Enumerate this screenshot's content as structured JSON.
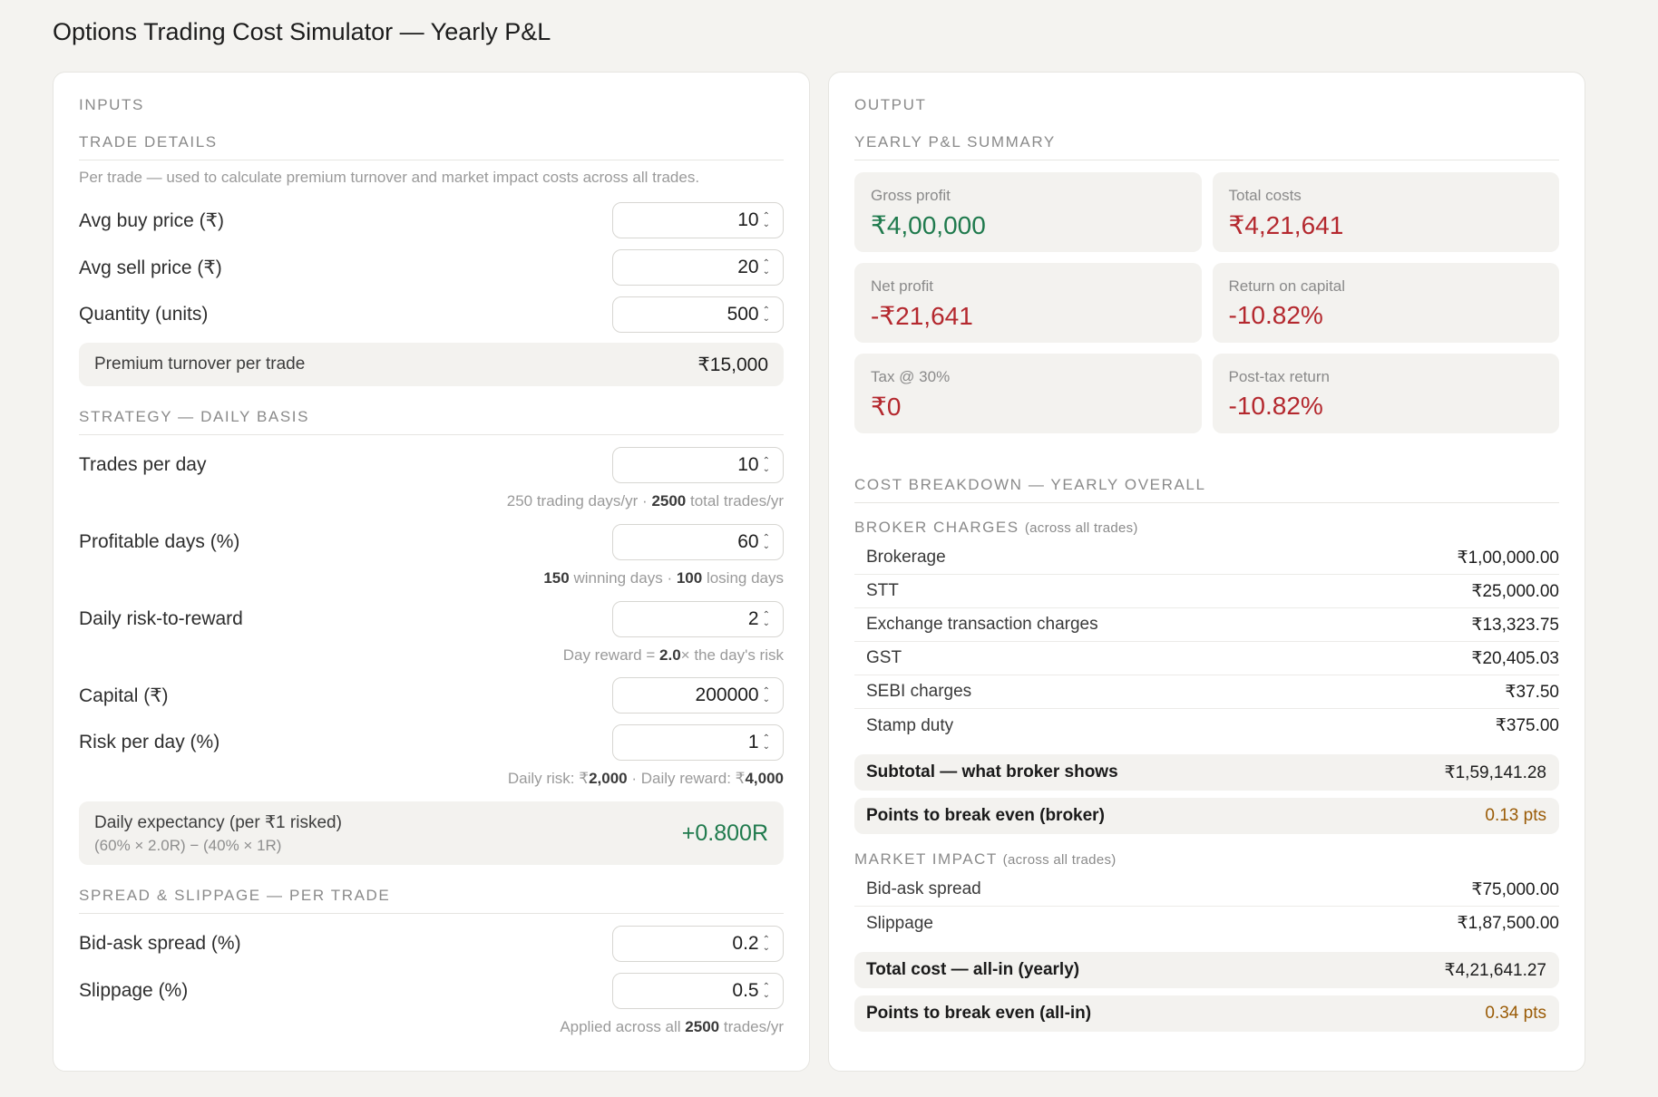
{
  "title": "Options Trading Cost Simulator — Yearly P&L",
  "inputs": {
    "heading": "INPUTS",
    "trade_details": {
      "heading": "TRADE DETAILS",
      "description": "Per trade — used to calculate premium turnover and market impact costs across all trades.",
      "avg_buy_label": "Avg buy price (₹)",
      "avg_buy_value": "10",
      "avg_sell_label": "Avg sell price (₹)",
      "avg_sell_value": "20",
      "quantity_label": "Quantity (units)",
      "quantity_value": "500",
      "turnover_label": "Premium turnover per trade",
      "turnover_value": "₹15,000"
    },
    "strategy": {
      "heading": "STRATEGY — DAILY BASIS",
      "trades_per_day_label": "Trades per day",
      "trades_per_day_value": "10",
      "trading_days_text": "250 trading days/yr",
      "total_trades": "2500",
      "total_trades_suffix": "total trades/yr",
      "profitable_days_label": "Profitable days (%)",
      "profitable_days_value": "60",
      "winning_days": "150",
      "winning_days_suffix": "winning days",
      "losing_days": "100",
      "losing_days_suffix": "losing days",
      "rr_label": "Daily risk-to-reward",
      "rr_value": "2",
      "rr_hint_prefix": "Day reward =",
      "rr_hint_value": "2.0",
      "rr_hint_suffix": "× the day's risk",
      "capital_label": "Capital (₹)",
      "capital_value": "200000",
      "risk_label": "Risk per day (%)",
      "risk_value": "1",
      "daily_risk_prefix": "Daily risk: ₹",
      "daily_risk": "2,000",
      "daily_reward_prefix": "Daily reward: ₹",
      "daily_reward": "4,000",
      "expectancy_label": "Daily expectancy (per ₹1 risked)",
      "expectancy_formula": "(60% × 2.0R) − (40% × 1R)",
      "expectancy_value": "+0.800R"
    },
    "spread": {
      "heading": "SPREAD & SLIPPAGE — PER TRADE",
      "bid_ask_label": "Bid-ask spread (%)",
      "bid_ask_value": "0.2",
      "slippage_label": "Slippage (%)",
      "slippage_value": "0.5",
      "applied_prefix": "Applied across all",
      "applied_value": "2500",
      "applied_suffix": "trades/yr"
    }
  },
  "output": {
    "heading": "OUTPUT",
    "summary_heading": "YEARLY P&L SUMMARY",
    "cards": [
      {
        "label": "Gross profit",
        "value": "₹4,00,000"
      },
      {
        "label": "Total costs",
        "value": "₹4,21,641"
      },
      {
        "label": "Net profit",
        "value": "-₹21,641"
      },
      {
        "label": "Return on capital",
        "value": "-10.82%"
      },
      {
        "label": "Tax @ 30%",
        "value": "₹0"
      },
      {
        "label": "Post-tax return",
        "value": "-10.82%"
      }
    ],
    "breakdown_heading": "COST BREAKDOWN — YEARLY OVERALL",
    "broker_heading": "BROKER CHARGES",
    "broker_note": "(across all trades)",
    "broker_rows": [
      {
        "label": "Brokerage",
        "value": "₹1,00,000.00"
      },
      {
        "label": "STT",
        "value": "₹25,000.00"
      },
      {
        "label": "Exchange transaction charges",
        "value": "₹13,323.75"
      },
      {
        "label": "GST",
        "value": "₹20,405.03"
      },
      {
        "label": "SEBI charges",
        "value": "₹37.50"
      },
      {
        "label": "Stamp duty",
        "value": "₹375.00"
      }
    ],
    "subtotal_label": "Subtotal — what broker shows",
    "subtotal_value": "₹1,59,141.28",
    "breakeven_broker_label": "Points to break even (broker)",
    "breakeven_broker_value": "0.13 pts",
    "market_heading": "MARKET IMPACT",
    "market_note": "(across all trades)",
    "market_rows": [
      {
        "label": "Bid-ask spread",
        "value": "₹75,000.00"
      },
      {
        "label": "Slippage",
        "value": "₹1,87,500.00"
      }
    ],
    "total_label": "Total cost — all-in (yearly)",
    "total_value": "₹4,21,641.27",
    "breakeven_allin_label": "Points to break even (all-in)",
    "breakeven_allin_value": "0.34 pts"
  },
  "colors": {
    "positive": "#1f7a4d",
    "negative": "#b4282e",
    "amber": "#9a5b06"
  }
}
